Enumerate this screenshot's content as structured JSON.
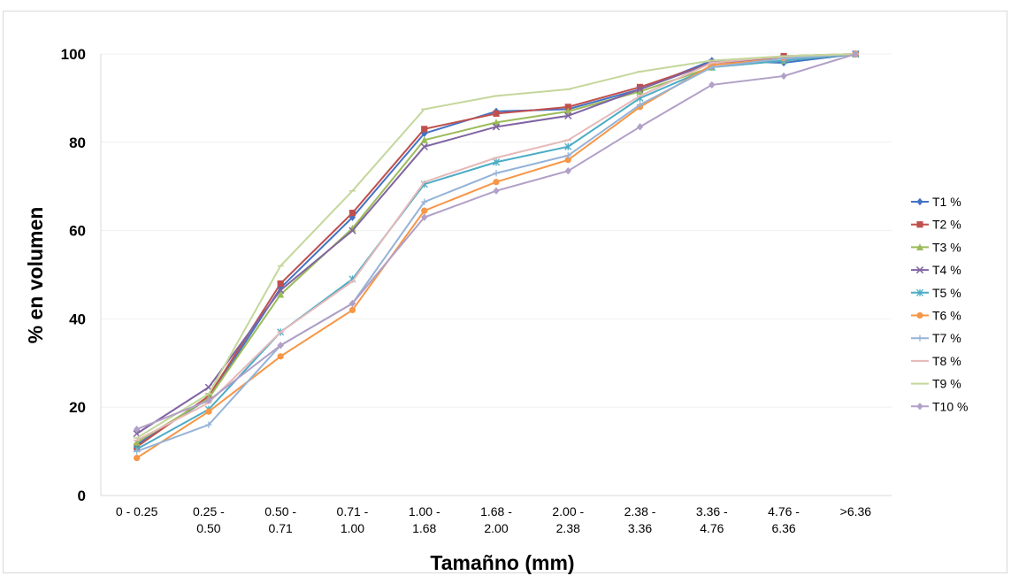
{
  "chart_data": {
    "type": "line",
    "title": "",
    "xlabel": "Tamañno (mm)",
    "ylabel": "% en volumen",
    "ylim": [
      0,
      100
    ],
    "yticks": [
      0,
      20,
      40,
      60,
      80,
      100
    ],
    "grid": true,
    "legend_position": "right",
    "categories": [
      [
        "0 - 0.25"
      ],
      [
        "0.25 -",
        "0.50"
      ],
      [
        "0.50 -",
        "0.71"
      ],
      [
        "0.71 -",
        "1.00"
      ],
      [
        "1.00 -",
        "1.68"
      ],
      [
        "1.68 -",
        "2.00"
      ],
      [
        "2.00 -",
        "2.38"
      ],
      [
        "2.38 -",
        "3.36"
      ],
      [
        "3.36 -",
        "4.76"
      ],
      [
        "4.76 -",
        "6.36"
      ],
      [
        ">6.36"
      ]
    ],
    "series": [
      {
        "name": "T1 %",
        "color": "#4472C4",
        "marker": "diamond",
        "values": [
          11.5,
          22.0,
          47.0,
          63.0,
          82.0,
          87.0,
          87.5,
          92.0,
          98.5,
          98.0,
          100
        ]
      },
      {
        "name": "T2 %",
        "color": "#C0504D",
        "marker": "square",
        "values": [
          11.0,
          22.5,
          48.0,
          64.0,
          83.0,
          86.5,
          88.0,
          92.5,
          98.0,
          99.5,
          100
        ]
      },
      {
        "name": "T3 %",
        "color": "#9BBB59",
        "marker": "triangle",
        "values": [
          12.0,
          22.0,
          45.5,
          60.5,
          80.5,
          84.5,
          87.0,
          91.5,
          97.0,
          98.5,
          100
        ]
      },
      {
        "name": "T4 %",
        "color": "#8064A2",
        "marker": "x",
        "values": [
          14.0,
          24.5,
          46.5,
          60.0,
          79.0,
          83.5,
          86.0,
          92.0,
          98.0,
          99.0,
          100
        ]
      },
      {
        "name": "T5 %",
        "color": "#4BACC6",
        "marker": "star",
        "values": [
          10.5,
          19.5,
          37.0,
          49.0,
          70.5,
          75.5,
          79.0,
          90.0,
          97.0,
          98.5,
          100
        ]
      },
      {
        "name": "T6 %",
        "color": "#F79646",
        "marker": "circle",
        "values": [
          8.5,
          19.0,
          31.5,
          42.0,
          64.5,
          71.0,
          76.0,
          88.0,
          97.5,
          99.0,
          100
        ]
      },
      {
        "name": "T7 %",
        "color": "#95B3D7",
        "marker": "plus",
        "values": [
          10.0,
          16.0,
          34.0,
          43.5,
          66.5,
          73.0,
          77.0,
          88.5,
          97.0,
          99.0,
          100
        ]
      },
      {
        "name": "T8 %",
        "color": "#E6B9B8",
        "marker": "dash",
        "values": [
          12.5,
          21.0,
          37.0,
          48.5,
          71.0,
          76.5,
          80.5,
          90.5,
          98.0,
          99.5,
          100
        ]
      },
      {
        "name": "T9 %",
        "color": "#C4D79B",
        "marker": "dash",
        "values": [
          13.0,
          23.0,
          52.0,
          69.0,
          87.5,
          90.5,
          92.0,
          96.0,
          98.5,
          99.5,
          100
        ]
      },
      {
        "name": "T10 %",
        "color": "#B1A0C7",
        "marker": "diamond",
        "values": [
          15.0,
          21.5,
          34.0,
          43.5,
          63.0,
          69.0,
          73.5,
          83.5,
          93.0,
          95.0,
          100
        ]
      }
    ]
  }
}
